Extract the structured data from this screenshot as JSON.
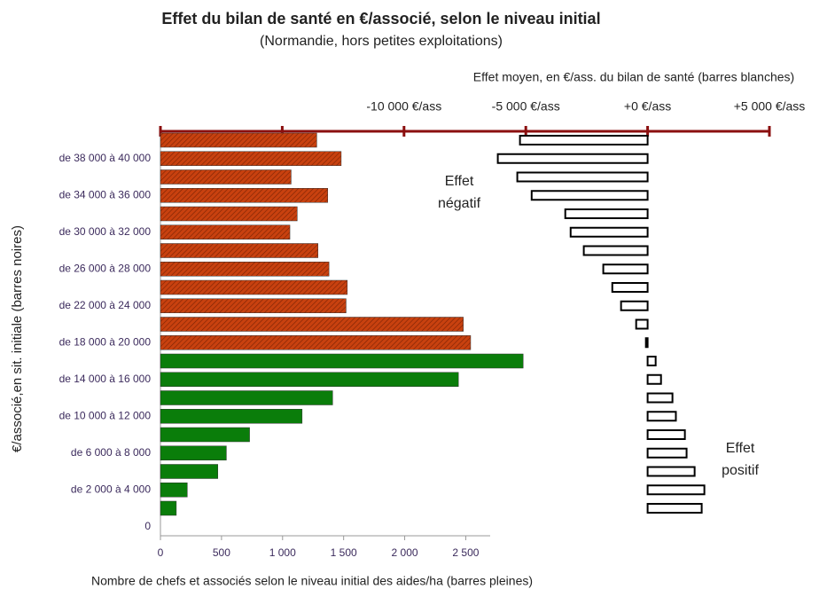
{
  "chart_data": {
    "type": "bar",
    "orientation": "horizontal",
    "title": "Effet du bilan de santé en €/associé, selon le niveau initial",
    "subtitle": "(Normandie, hors petites exploitations)",
    "x2_label": "Effet moyen, en €/ass. du bilan de santé (barres blanches)",
    "y_label": "€/associé,en sit. initiale (barres noires)",
    "x_label": "Nombre de chefs et associés selon le niveau initial des aides/ha (barres pleines)",
    "categories": [
      null,
      "de 38 000 à 40 000",
      null,
      "de 34 000 à 36 000",
      null,
      "de 30 000 à 32 000",
      null,
      "de 26 000 à 28 000",
      null,
      "de 22 000 à 24 000",
      null,
      "de 18 000 à 20 000",
      null,
      "de 14 000 à 16 000",
      null,
      "de 10 000 à 12 000",
      null,
      "de 6 000 à 8 000",
      null,
      "de 2 000 à 4 000",
      null,
      "0"
    ],
    "series": [
      {
        "colors": [
          "#c8410f",
          "#c8410f",
          "#c8410f",
          "#c8410f",
          "#c8410f",
          "#c8410f",
          "#c8410f",
          "#c8410f",
          "#c8410f",
          "#c8410f",
          "#c8410f",
          "#c8410f",
          "#0a7d0a",
          "#0a7d0a",
          "#0a7d0a",
          "#0a7d0a",
          "#0a7d0a",
          "#0a7d0a",
          "#0a7d0a",
          "#0a7d0a",
          "#0a7d0a",
          null
        ],
        "hatched": [
          true,
          true,
          true,
          true,
          true,
          true,
          true,
          true,
          true,
          true,
          true,
          true,
          false,
          false,
          false,
          false,
          false,
          false,
          false,
          false,
          false,
          false
        ],
        "values": [
          1280,
          1480,
          1070,
          1370,
          1120,
          1060,
          1290,
          1380,
          1530,
          1520,
          2480,
          2540,
          2970,
          2440,
          1410,
          1160,
          730,
          540,
          470,
          220,
          130,
          null
        ]
      },
      {
        "axis": "x2",
        "color": "#ffffff",
        "values": [
          -5240,
          -6150,
          -5350,
          -4760,
          -3380,
          -3160,
          -2620,
          -1820,
          -1450,
          -1090,
          -470,
          -70,
          330,
          550,
          1020,
          1160,
          1530,
          1600,
          1930,
          2330,
          2220,
          null
        ]
      }
    ],
    "xlim": [
      0,
      2700
    ],
    "xticks": [
      0,
      500,
      {
        "value": 1000,
        "label": "1 000"
      },
      {
        "value": 1500,
        "label": "1 500"
      },
      {
        "value": 2000,
        "label": "2 000"
      },
      {
        "value": 2500,
        "label": "2 500"
      }
    ],
    "x2lim": [
      -20000,
      5000
    ],
    "x2tick_marks": [
      -20000,
      -15000,
      -10000,
      -5000,
      0,
      5000
    ],
    "x2ticks": [
      {
        "value": -10000,
        "label": "-10 000 €/ass"
      },
      {
        "value": -5000,
        "label": "-5 000 €/ass"
      },
      {
        "value": 0,
        "label": "+0 €/ass"
      },
      {
        "value": 5000,
        "label": "+5 000 €/ass"
      }
    ],
    "annotations": [
      {
        "lines": [
          "Effet",
          "négatif"
        ]
      },
      {
        "lines": [
          "Effet",
          "positif"
        ]
      }
    ]
  }
}
